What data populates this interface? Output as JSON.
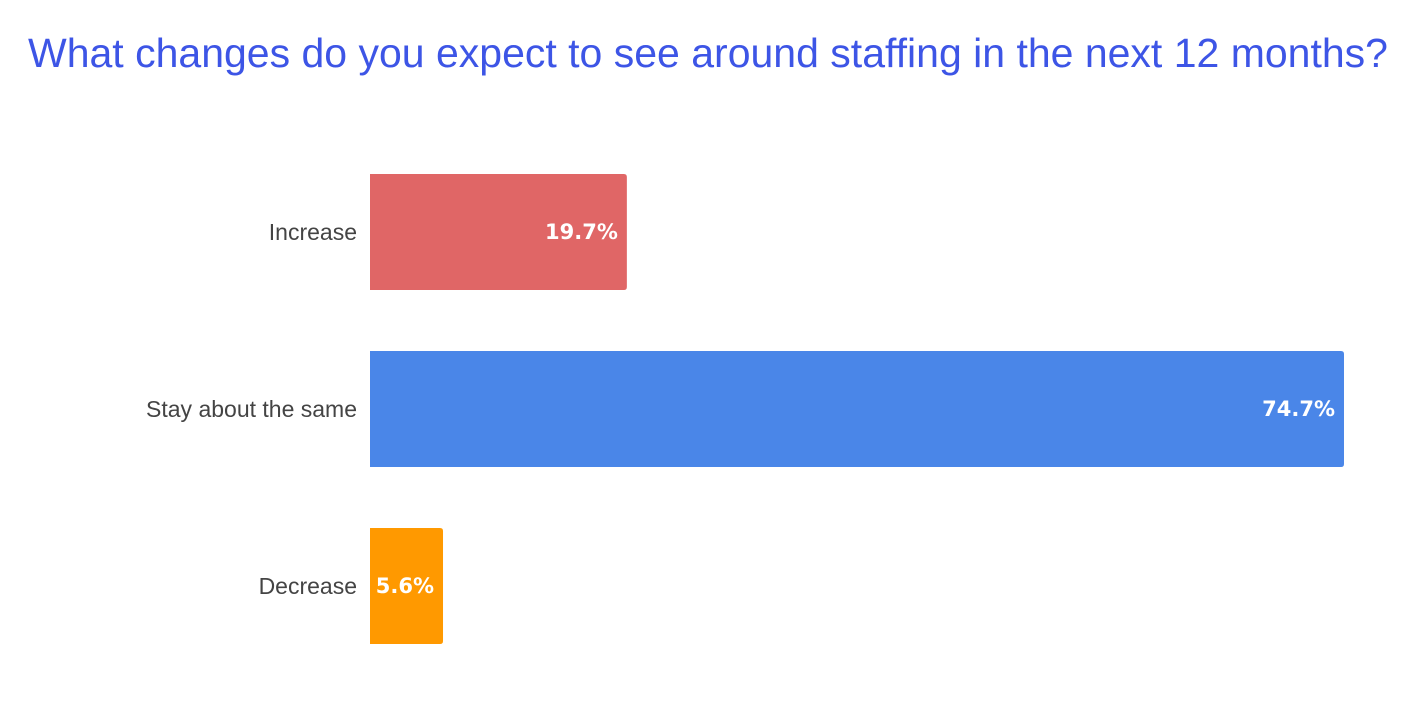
{
  "chart_data": {
    "type": "bar",
    "orientation": "horizontal",
    "title": "What changes do you expect to see around staffing in the next 12 months?",
    "categories": [
      "Increase",
      "Stay about the same",
      "Decrease"
    ],
    "values": [
      19.7,
      74.7,
      5.6
    ],
    "value_labels": [
      "19.7%",
      "74.7%",
      "5.6%"
    ],
    "unit": "%",
    "xlim": [
      0,
      74.7
    ],
    "grid": false,
    "legend": "none"
  },
  "colors": {
    "title": "#3d55e6",
    "category_text": "#444444",
    "value_text": "#ffffff",
    "bars": [
      "#e06666",
      "#4a86e8",
      "#ff9900"
    ]
  }
}
